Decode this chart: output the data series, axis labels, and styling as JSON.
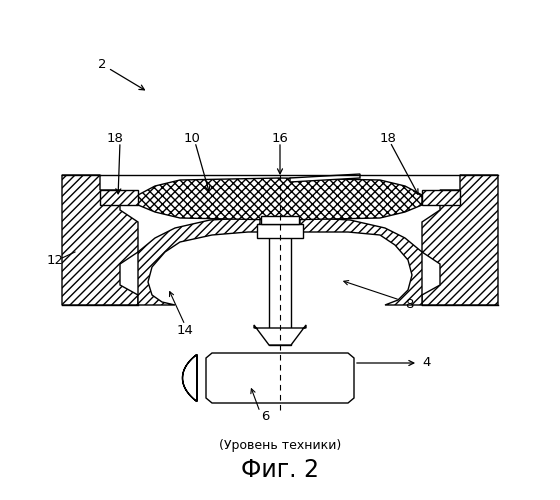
{
  "title": "Фиг. 2",
  "subtitle": "(Уровень техники)",
  "bg_color": "#ffffff",
  "line_color": "#000000",
  "fig_width": 5.6,
  "fig_height": 5.0,
  "dpi": 100
}
